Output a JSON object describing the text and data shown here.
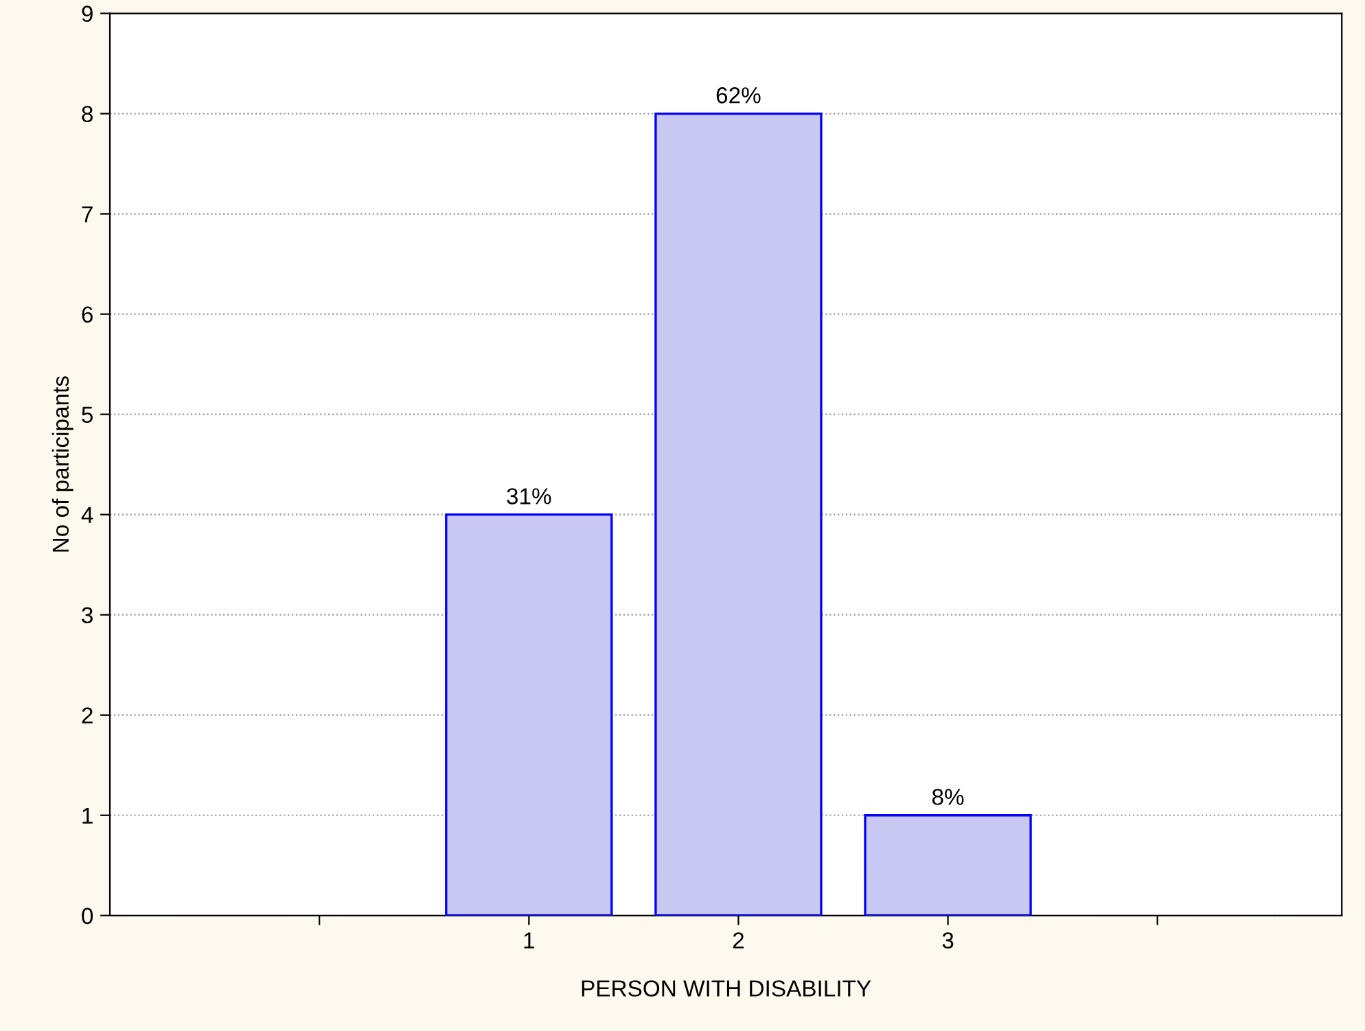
{
  "chart_data": {
    "type": "bar",
    "xlabel": "PERSON WITH DISABILITY",
    "ylabel": "No of participants",
    "x": [
      1,
      2,
      3
    ],
    "values": [
      4,
      8,
      1
    ],
    "color": "#c8c8f2",
    "annotations": [
      {
        "text": "31%",
        "x": 1,
        "y": 4
      },
      {
        "text": "62%",
        "x": 2,
        "y": 8
      },
      {
        "text": "8%",
        "x": 3,
        "y": 1
      }
    ],
    "xlim": [
      -1,
      4.88
    ],
    "xticks": [
      {
        "value": 0,
        "label": null
      },
      1,
      2,
      3,
      {
        "value": 4,
        "label": null
      }
    ],
    "ylim": [
      0,
      9
    ],
    "yticks": [
      0,
      1,
      2,
      3,
      4,
      5,
      6,
      7,
      8,
      9
    ],
    "grid": "y",
    "legend": false
  }
}
